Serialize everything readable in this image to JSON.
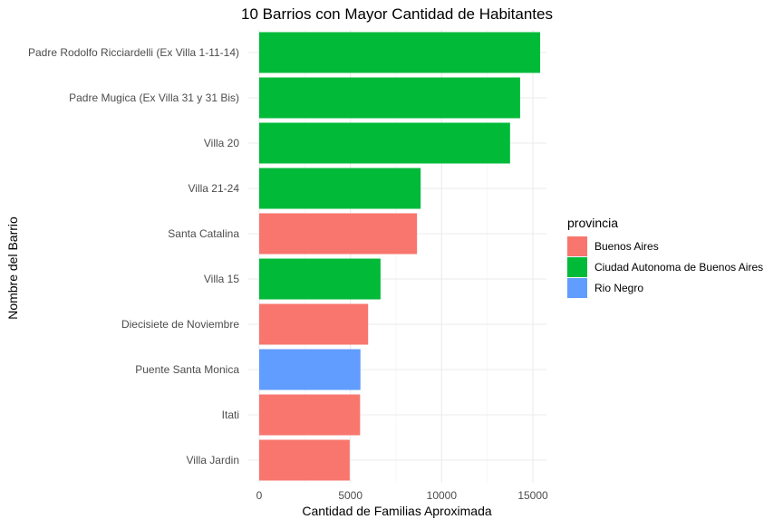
{
  "chart_data": {
    "type": "bar",
    "orientation": "horizontal",
    "title": "10 Barrios con Mayor Cantidad de Habitantes",
    "xlabel": "Cantidad de Familias Aproximada",
    "ylabel": "Nombre del Barrio",
    "xlim": [
      0,
      16000
    ],
    "x_ticks": [
      0,
      5000,
      10000,
      15000
    ],
    "x_tick_labels": [
      "0",
      "5000",
      "10000",
      "15000"
    ],
    "grid": true,
    "legend": {
      "title": "provincia",
      "position": "right",
      "entries": [
        {
          "label": "Buenos Aires",
          "color": "#F8766D"
        },
        {
          "label": "Ciudad Autonoma de Buenos Aires",
          "color": "#00BA38"
        },
        {
          "label": "Rio Negro",
          "color": "#619CFF"
        }
      ]
    },
    "categories": [
      "Padre Rodolfo Ricciardelli (Ex Villa 1-11-14)",
      "Padre Mugica (Ex Villa 31 y 31 Bis)",
      "Villa 20",
      "Villa 21-24",
      "Santa Catalina",
      "Villa 15",
      "Diecisiete de Noviembre",
      "Puente Santa Monica",
      "Itati",
      "Villa Jardin"
    ],
    "values": [
      15400,
      14300,
      13750,
      8850,
      8650,
      6650,
      5970,
      5550,
      5530,
      4960
    ],
    "groups": [
      "Ciudad Autonoma de Buenos Aires",
      "Ciudad Autonoma de Buenos Aires",
      "Ciudad Autonoma de Buenos Aires",
      "Ciudad Autonoma de Buenos Aires",
      "Buenos Aires",
      "Ciudad Autonoma de Buenos Aires",
      "Buenos Aires",
      "Rio Negro",
      "Buenos Aires",
      "Buenos Aires"
    ]
  }
}
